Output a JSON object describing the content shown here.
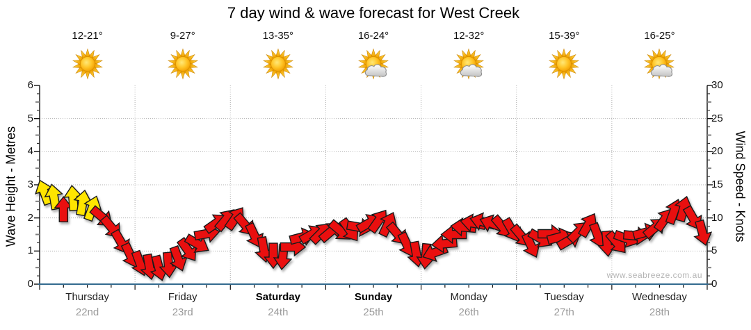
{
  "title": "7 day wind & wave forecast for West Creek",
  "watermark": "www.seabreeze.com.au",
  "axes": {
    "left": {
      "title": "Wave Height - Metres",
      "ticks": [
        0,
        1,
        2,
        3,
        4,
        5,
        6
      ],
      "range": [
        0,
        6
      ]
    },
    "right": {
      "title": "Wind Speed - Knots",
      "ticks": [
        0,
        5,
        10,
        15,
        20,
        25,
        30
      ],
      "range": [
        0,
        30
      ]
    }
  },
  "days": [
    {
      "name": "Thursday",
      "date": "22nd",
      "temp": "12-21°",
      "icon": "sunny",
      "weekend": false
    },
    {
      "name": "Friday",
      "date": "23rd",
      "temp": "9-27°",
      "icon": "sunny",
      "weekend": false
    },
    {
      "name": "Saturday",
      "date": "24th",
      "temp": "13-35°",
      "icon": "sunny",
      "weekend": true
    },
    {
      "name": "Sunday",
      "date": "25th",
      "temp": "16-24°",
      "icon": "partly-cloudy",
      "weekend": true
    },
    {
      "name": "Monday",
      "date": "26th",
      "temp": "12-32°",
      "icon": "partly-cloudy",
      "weekend": false
    },
    {
      "name": "Tuesday",
      "date": "27th",
      "temp": "15-39°",
      "icon": "sunny",
      "weekend": false
    },
    {
      "name": "Wednesday",
      "date": "28th",
      "temp": "16-25°",
      "icon": "partly-cloudy",
      "weekend": false
    }
  ],
  "colors": {
    "arrow_yellow": "#FFE500",
    "arrow_red": "#E90F0F",
    "arrow_outline": "#1a1a1a",
    "baseline_blue": "#336A8F",
    "grid": "#b0b0b0",
    "date_grey": "#9a9a9a"
  },
  "chart_data": {
    "type": "wind-arrows",
    "title": "7 day wind & wave forecast for West Creek",
    "ylabel_left": "Wave Height - Metres",
    "ylabel_right": "Wind Speed - Knots",
    "ylim_left": [
      0,
      6
    ],
    "ylim_right": [
      0,
      30
    ],
    "grid": true,
    "categories": [
      "Thursday 22nd",
      "Friday 23rd",
      "Saturday 24th",
      "Sunday 25th",
      "Monday 26th",
      "Tuesday 27th",
      "Wednesday 28th"
    ],
    "points_per_day": 10,
    "point_format": "[wind_speed_knots, direction_deg_clockwise_from_up, color(y=yellow,r=red)]",
    "wind_points": [
      [
        13.8,
        340,
        "y"
      ],
      [
        13.1,
        350,
        "y"
      ],
      [
        11.2,
        0,
        "r"
      ],
      [
        12.9,
        355,
        "y"
      ],
      [
        12.2,
        10,
        "y"
      ],
      [
        11.4,
        20,
        "y"
      ],
      [
        10.2,
        130,
        "r"
      ],
      [
        8.6,
        140,
        "r"
      ],
      [
        6.4,
        150,
        "r"
      ],
      [
        4.4,
        155,
        "r"
      ],
      [
        3.2,
        160,
        "r"
      ],
      [
        2.7,
        170,
        "r"
      ],
      [
        2.5,
        165,
        "r"
      ],
      [
        3.0,
        175,
        "r"
      ],
      [
        3.9,
        160,
        "r"
      ],
      [
        5.2,
        145,
        "r"
      ],
      [
        6.1,
        120,
        "r"
      ],
      [
        7.6,
        80,
        "r"
      ],
      [
        9.2,
        55,
        "r"
      ],
      [
        9.7,
        40,
        "r"
      ],
      [
        9.9,
        35,
        "r"
      ],
      [
        9.0,
        140,
        "r"
      ],
      [
        7.4,
        155,
        "r"
      ],
      [
        5.3,
        170,
        "r"
      ],
      [
        4.4,
        180,
        "r"
      ],
      [
        4.2,
        185,
        "r"
      ],
      [
        5.6,
        90,
        "r"
      ],
      [
        7.1,
        75,
        "r"
      ],
      [
        7.5,
        60,
        "r"
      ],
      [
        7.7,
        45,
        "r"
      ],
      [
        7.9,
        50,
        "r"
      ],
      [
        8.1,
        130,
        "r"
      ],
      [
        8.2,
        145,
        "r"
      ],
      [
        8.6,
        100,
        "r"
      ],
      [
        9.2,
        60,
        "r"
      ],
      [
        9.5,
        35,
        "r"
      ],
      [
        9.0,
        25,
        "r"
      ],
      [
        7.6,
        140,
        "r"
      ],
      [
        6.0,
        155,
        "r"
      ],
      [
        4.6,
        170,
        "r"
      ],
      [
        4.3,
        185,
        "r"
      ],
      [
        4.8,
        250,
        "r"
      ],
      [
        6.1,
        265,
        "r"
      ],
      [
        7.5,
        270,
        "r"
      ],
      [
        8.6,
        275,
        "r"
      ],
      [
        9.2,
        280,
        "r"
      ],
      [
        9.4,
        285,
        "r"
      ],
      [
        9.1,
        290,
        "r"
      ],
      [
        8.7,
        140,
        "r"
      ],
      [
        8.2,
        150,
        "r"
      ],
      [
        7.3,
        140,
        "r"
      ],
      [
        5.9,
        155,
        "r"
      ],
      [
        6.9,
        120,
        "r"
      ],
      [
        7.6,
        90,
        "r"
      ],
      [
        7.1,
        75,
        "r"
      ],
      [
        6.6,
        60,
        "r"
      ],
      [
        7.9,
        45,
        "r"
      ],
      [
        8.9,
        30,
        "r"
      ],
      [
        7.4,
        160,
        "r"
      ],
      [
        6.2,
        175,
        "r"
      ],
      [
        6.3,
        140,
        "r"
      ],
      [
        6.9,
        110,
        "r"
      ],
      [
        7.3,
        95,
        "r"
      ],
      [
        7.8,
        75,
        "r"
      ],
      [
        8.5,
        50,
        "r"
      ],
      [
        9.7,
        35,
        "r"
      ],
      [
        10.9,
        20,
        "r"
      ],
      [
        11.3,
        15,
        "r"
      ],
      [
        10.0,
        150,
        "r"
      ],
      [
        7.8,
        165,
        "r"
      ]
    ]
  }
}
